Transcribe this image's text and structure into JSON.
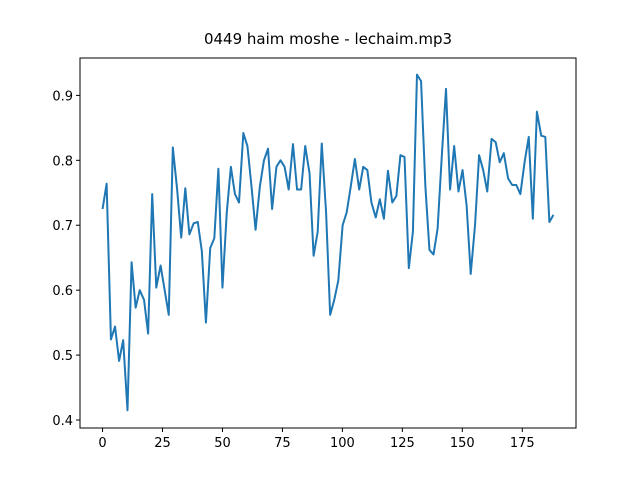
{
  "chart_data": {
    "type": "line",
    "title": "0449 haim moshe - lechaim.mp3",
    "x": [
      0,
      1.7,
      3.5,
      5.2,
      6.9,
      8.6,
      10.4,
      12.1,
      13.8,
      15.5,
      17.3,
      19.0,
      20.7,
      22.4,
      24.2,
      25.9,
      27.6,
      29.3,
      31.1,
      32.8,
      34.5,
      36.2,
      38.0,
      39.7,
      41.4,
      43.1,
      44.9,
      46.6,
      48.3,
      50.0,
      51.8,
      53.5,
      55.2,
      56.9,
      58.7,
      60.4,
      62.1,
      63.8,
      65.6,
      67.3,
      69.0,
      70.7,
      72.5,
      74.2,
      75.9,
      77.6,
      79.4,
      81.1,
      82.8,
      84.5,
      86.3,
      88.0,
      89.7,
      91.4,
      93.2,
      94.9,
      96.6,
      98.3,
      100.1,
      101.8,
      103.5,
      105.2,
      107.0,
      108.7,
      110.4,
      112.1,
      113.9,
      115.6,
      117.3,
      119.0,
      120.8,
      122.5,
      124.2,
      125.9,
      127.7,
      129.4,
      131.1,
      132.8,
      134.6,
      136.3,
      138.0,
      139.7,
      141.5,
      143.2,
      144.9,
      146.6,
      148.4,
      150.1,
      151.8,
      153.5,
      155.3,
      157.0,
      158.7,
      160.4,
      162.2,
      163.9,
      165.6,
      167.3,
      169.1,
      170.8,
      172.5,
      174.2,
      176.0,
      177.7,
      179.4,
      181.1,
      182.9,
      184.6,
      186.3,
      188.0
    ],
    "series": [
      {
        "color": "#1f77b4",
        "values": [
          0.725,
          0.764,
          0.524,
          0.544,
          0.491,
          0.523,
          0.415,
          0.643,
          0.573,
          0.6,
          0.585,
          0.533,
          0.748,
          0.604,
          0.638,
          0.6,
          0.562,
          0.82,
          0.755,
          0.681,
          0.757,
          0.686,
          0.703,
          0.705,
          0.66,
          0.55,
          0.665,
          0.68,
          0.787,
          0.604,
          0.72,
          0.79,
          0.748,
          0.735,
          0.842,
          0.822,
          0.76,
          0.693,
          0.76,
          0.8,
          0.818,
          0.725,
          0.79,
          0.8,
          0.79,
          0.755,
          0.825,
          0.755,
          0.755,
          0.822,
          0.78,
          0.653,
          0.69,
          0.826,
          0.72,
          0.562,
          0.585,
          0.615,
          0.7,
          0.72,
          0.76,
          0.802,
          0.755,
          0.79,
          0.785,
          0.735,
          0.712,
          0.74,
          0.71,
          0.784,
          0.735,
          0.745,
          0.808,
          0.805,
          0.634,
          0.69,
          0.932,
          0.922,
          0.76,
          0.662,
          0.655,
          0.695,
          0.81,
          0.91,
          0.755,
          0.822,
          0.752,
          0.785,
          0.73,
          0.625,
          0.7,
          0.808,
          0.785,
          0.752,
          0.833,
          0.828,
          0.797,
          0.811,
          0.772,
          0.762,
          0.762,
          0.748,
          0.798,
          0.836,
          0.71,
          0.875,
          0.838,
          0.836,
          0.705,
          0.716
        ]
      }
    ],
    "xlim": [
      -9.4,
      197.4
    ],
    "ylim": [
      0.3877,
      0.9576
    ],
    "xticks": [
      0,
      25,
      50,
      75,
      100,
      125,
      150,
      175
    ],
    "yticks": [
      0.4,
      0.5,
      0.6,
      0.7,
      0.8,
      0.9
    ]
  }
}
